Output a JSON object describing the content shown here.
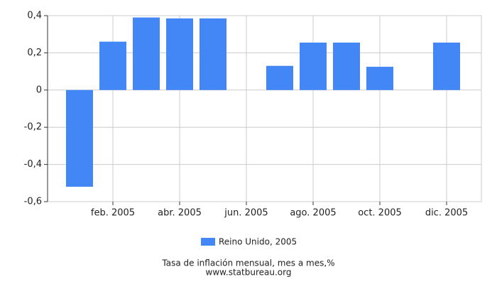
{
  "chart_data": {
    "type": "bar",
    "categories": [
      null,
      "feb. 2005",
      null,
      "abr. 2005",
      null,
      "jun. 2005",
      null,
      "ago. 2005",
      null,
      "oct. 2005",
      null,
      "dic. 2005"
    ],
    "series": [
      {
        "name": "Reino Unido, 2005",
        "color": "#4287f5",
        "values": [
          -0.52,
          0.26,
          0.39,
          0.385,
          0.385,
          0,
          0.13,
          0.255,
          0.255,
          0.125,
          0,
          0.255
        ]
      }
    ],
    "ylim": [
      -0.6,
      0.4
    ],
    "yticks": [
      {
        "value": -0.6,
        "label": "-0,6"
      },
      {
        "value": -0.4,
        "label": "-0,4"
      },
      {
        "value": -0.2,
        "label": "-0,2"
      },
      0,
      {
        "value": 0.2,
        "label": "0,2"
      },
      {
        "value": 0.4,
        "label": "0,4"
      }
    ],
    "grid": true,
    "caption": "Tasa de inflación mensual, mes a mes,%",
    "source": "www.statbureau.org"
  }
}
